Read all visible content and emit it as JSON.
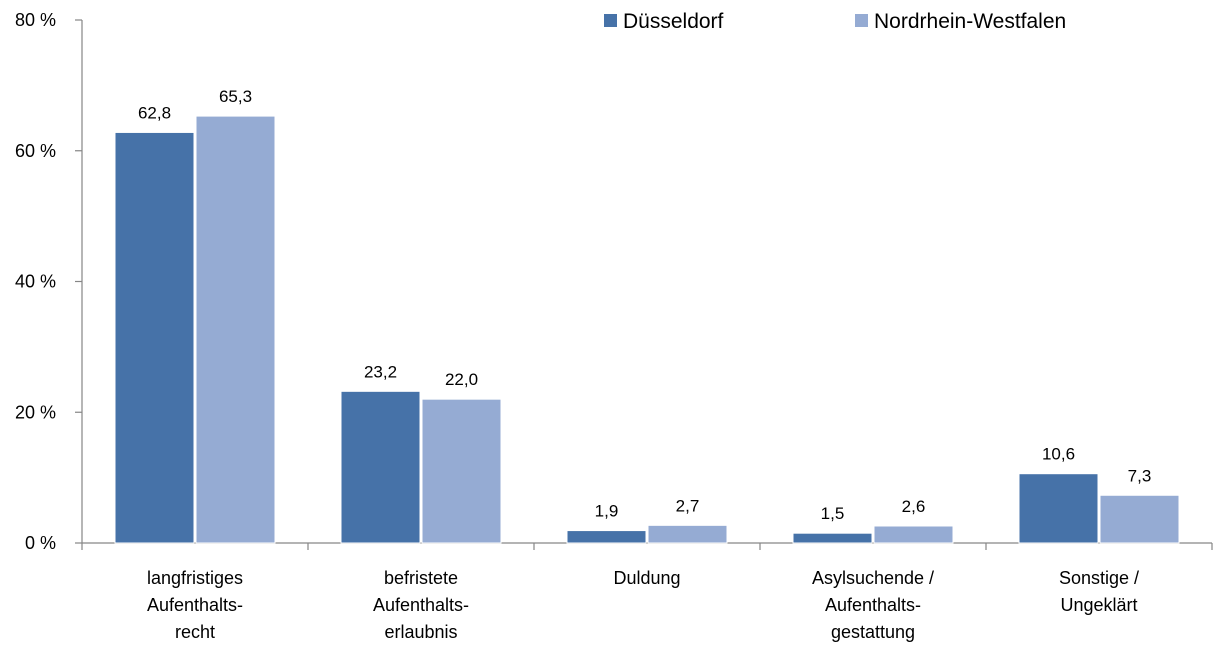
{
  "chart_data": {
    "type": "bar",
    "categories": [
      [
        "langfristiges",
        "Aufenthalts-",
        "recht"
      ],
      [
        "befristete",
        "Aufenthalts-",
        "erlaubnis"
      ],
      [
        "Duldung"
      ],
      [
        "Asylsuchende /",
        "Aufenthalts-",
        "gestattung"
      ],
      [
        "Sonstige /",
        "Ungeklärt"
      ]
    ],
    "series": [
      {
        "name": "Düsseldorf",
        "color": "#4672a8",
        "values": [
          62.8,
          23.2,
          1.9,
          1.5,
          10.6
        ],
        "labels": [
          "62,8",
          "23,2",
          "1,9",
          "1,5",
          "10,6"
        ]
      },
      {
        "name": "Nordrhein-Westfalen",
        "color": "#95abd3",
        "values": [
          65.3,
          22.0,
          2.7,
          2.6,
          7.3
        ],
        "labels": [
          "65,3",
          "22,0",
          "2,7",
          "2,6",
          "7,3"
        ]
      }
    ],
    "yticks": [
      {
        "value": 0,
        "label": "0 %"
      },
      {
        "value": 20,
        "label": "20 %"
      },
      {
        "value": 40,
        "label": "40 %"
      },
      {
        "value": 60,
        "label": "60 %"
      },
      {
        "value": 80,
        "label": "80 %"
      }
    ],
    "ylim": [
      0,
      80
    ],
    "grid": false,
    "legend": "top-right",
    "title": "",
    "xlabel": "",
    "ylabel": ""
  }
}
